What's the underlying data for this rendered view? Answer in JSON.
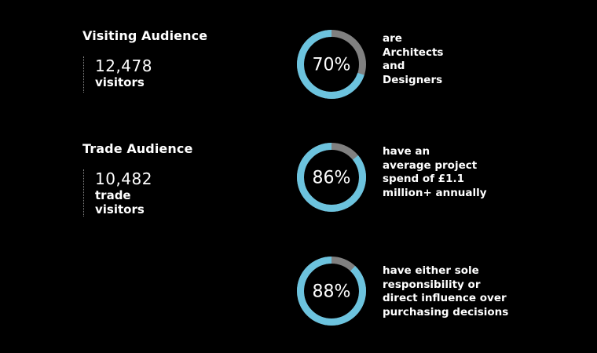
{
  "colors": {
    "background": "#000000",
    "ring_fill": "#6cc3de",
    "ring_remainder": "#808080",
    "text": "#ffffff"
  },
  "visiting": {
    "heading": "Visiting Audience",
    "number": "12,478",
    "unit": "visitors"
  },
  "trade": {
    "heading": "Trade Audience",
    "number": "10,482",
    "unit": "trade\nvisitors"
  },
  "chart_data": {
    "type": "pie",
    "style": "donut",
    "charts": [
      {
        "value": 70,
        "label": "70%",
        "description": "are\nArchitects\nand\nDesigners"
      },
      {
        "value": 86,
        "label": "86%",
        "description": "have an\naverage project\nspend of £1.1\nmillion+ annually"
      },
      {
        "value": 88,
        "label": "88%",
        "description": "have either sole\nresponsibility or\ndirect influence over\npurchasing decisions"
      }
    ]
  }
}
